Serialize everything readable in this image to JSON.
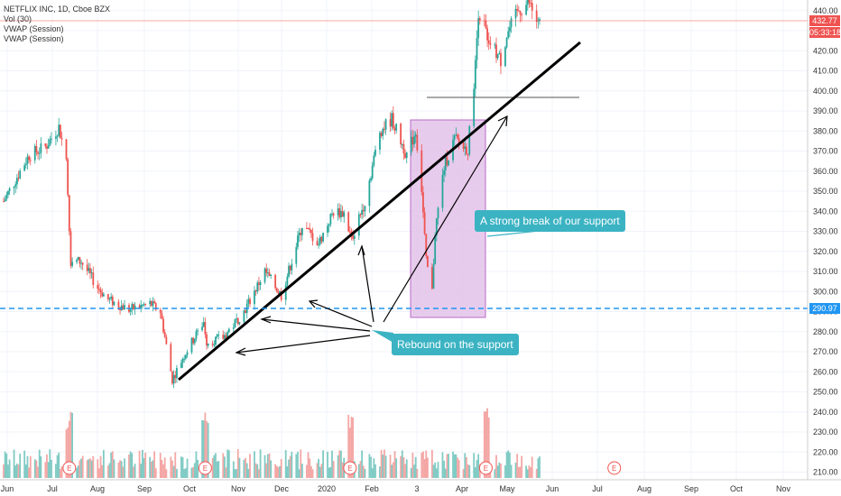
{
  "legend": {
    "symbol": "NETFLIX INC, 1D, Cboe BZX",
    "vol": "Vol (30)",
    "vwap1": "VWAP (Session)",
    "vwap2": "VWAP (Session)"
  },
  "price_tags": {
    "last": "432.77",
    "countdown": "05:33:18",
    "level": "290.97"
  },
  "annotations": {
    "break": "A strong break of our support",
    "rebound": "Rebound on the support"
  },
  "earnings_marker": "E",
  "colors": {
    "up": "#26a69a",
    "down": "#ef5350",
    "level_line": "#2196f3",
    "callout": "#3bb3c3",
    "highlight_fill": "#e1bee7",
    "highlight_stroke": "#ba68c8",
    "last_price": "#ef5350"
  },
  "chart_data": {
    "type": "candlestick",
    "title": "NETFLIX INC, 1D, Cboe BZX",
    "ylim": [
      206,
      444
    ],
    "y_ticks": [
      "210.00",
      "220.00",
      "230.00",
      "240.00",
      "250.00",
      "260.00",
      "270.00",
      "280.00",
      "290.00",
      "300.00",
      "310.00",
      "320.00",
      "330.00",
      "340.00",
      "350.00",
      "360.00",
      "370.00",
      "380.00",
      "390.00",
      "400.00",
      "410.00",
      "420.00",
      "430.00",
      "440.00"
    ],
    "x_ticks": [
      "Jun",
      "Jul",
      "Aug",
      "Sep",
      "Oct",
      "Nov",
      "Dec",
      "2020",
      "Feb",
      "3",
      "Apr",
      "May",
      "Jun",
      "Jul",
      "Aug",
      "Sep",
      "Oct",
      "Nov"
    ],
    "price_path": [
      {
        "date": "2019-06-03",
        "close": 345
      },
      {
        "date": "2019-06-20",
        "close": 368
      },
      {
        "date": "2019-07-01",
        "close": 372
      },
      {
        "date": "2019-07-10",
        "close": 382
      },
      {
        "date": "2019-07-15",
        "close": 366
      },
      {
        "date": "2019-07-18",
        "close": 315
      },
      {
        "date": "2019-07-25",
        "close": 315
      },
      {
        "date": "2019-08-05",
        "close": 302
      },
      {
        "date": "2019-08-12",
        "close": 296
      },
      {
        "date": "2019-08-26",
        "close": 291
      },
      {
        "date": "2019-09-09",
        "close": 294
      },
      {
        "date": "2019-09-16",
        "close": 290
      },
      {
        "date": "2019-09-24",
        "close": 256
      },
      {
        "date": "2019-10-01",
        "close": 267
      },
      {
        "date": "2019-10-15",
        "close": 285
      },
      {
        "date": "2019-10-17",
        "close": 275
      },
      {
        "date": "2019-10-28",
        "close": 277
      },
      {
        "date": "2019-11-11",
        "close": 290
      },
      {
        "date": "2019-11-25",
        "close": 310
      },
      {
        "date": "2019-12-06",
        "close": 298
      },
      {
        "date": "2019-12-20",
        "close": 333
      },
      {
        "date": "2019-12-31",
        "close": 324
      },
      {
        "date": "2020-01-10",
        "close": 340
      },
      {
        "date": "2020-01-17",
        "close": 339
      },
      {
        "date": "2020-01-22",
        "close": 326
      },
      {
        "date": "2020-01-31",
        "close": 345
      },
      {
        "date": "2020-02-10",
        "close": 380
      },
      {
        "date": "2020-02-18",
        "close": 386
      },
      {
        "date": "2020-02-24",
        "close": 375
      },
      {
        "date": "2020-02-28",
        "close": 368
      },
      {
        "date": "2020-03-05",
        "close": 380
      },
      {
        "date": "2020-03-09",
        "close": 351
      },
      {
        "date": "2020-03-12",
        "close": 315
      },
      {
        "date": "2020-03-16",
        "close": 300
      },
      {
        "date": "2020-03-18",
        "close": 330
      },
      {
        "date": "2020-03-24",
        "close": 362
      },
      {
        "date": "2020-03-31",
        "close": 376
      },
      {
        "date": "2020-04-06",
        "close": 372
      },
      {
        "date": "2020-04-09",
        "close": 371
      },
      {
        "date": "2020-04-14",
        "close": 413
      },
      {
        "date": "2020-04-16",
        "close": 440
      },
      {
        "date": "2020-04-24",
        "close": 424
      },
      {
        "date": "2020-05-01",
        "close": 415
      },
      {
        "date": "2020-05-05",
        "close": 428
      },
      {
        "date": "2020-05-13",
        "close": 440
      },
      {
        "date": "2020-05-20",
        "close": 444
      },
      {
        "date": "2020-05-26",
        "close": 432.77
      }
    ],
    "last_price": 432.77,
    "horizontal_level": 290.97,
    "earnings_dates": [
      "2019-07-17",
      "2019-10-16",
      "2020-01-21",
      "2020-04-21",
      "2020-07-16"
    ],
    "volume_panel": true,
    "grid": true,
    "legend_position": "top-left"
  }
}
